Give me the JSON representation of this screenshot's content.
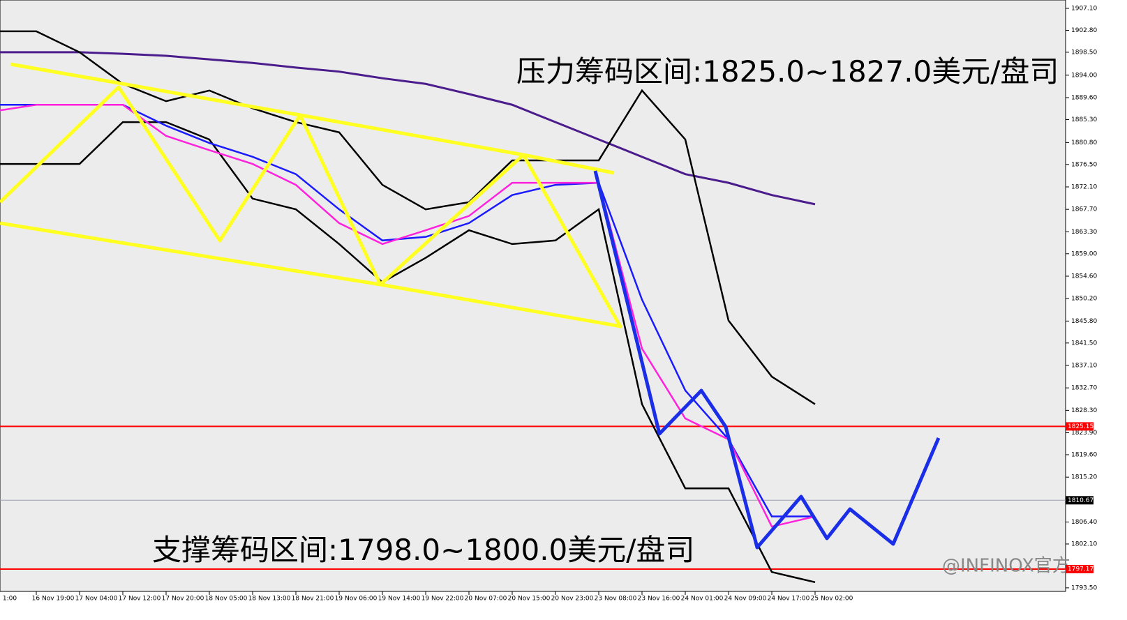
{
  "chart_data": {
    "type": "line",
    "annotations": [
      "压力筹码区间:1825.0~1827.0美元/盘司",
      "支撑筹码区间:1798.0~1800.0美元/盘司"
    ],
    "watermark": "@INFINOX官方",
    "categories": [
      "1:00",
      "16 Nov 19:00",
      "17 Nov 04:00",
      "17 Nov 12:00",
      "17 Nov 20:00",
      "18 Nov 05:00",
      "18 Nov 13:00",
      "18 Nov 21:00",
      "19 Nov 06:00",
      "19 Nov 14:00",
      "19 Nov 22:00",
      "20 Nov 07:00",
      "20 Nov 15:00",
      "20 Nov 23:00",
      "23 Nov 08:00",
      "23 Nov 16:00",
      "24 Nov 01:00",
      "24 Nov 09:00",
      "24 Nov 17:00",
      "25 Nov 02:00"
    ],
    "series": [
      {
        "color": "#4b1c8c",
        "values": [
          1898.5,
          1898.5,
          1898.5,
          1898.2,
          1897.8,
          1897.1,
          1896.4,
          1895.5,
          1894.7,
          1893.4,
          1892.3,
          1890.3,
          1888.2,
          1884.8,
          1881.4,
          1878.0,
          1874.6,
          1872.9,
          1870.5,
          1868.7
        ]
      },
      {
        "color": "#000000",
        "values": [
          1902.6,
          1902.6,
          1898.5,
          1892.3,
          1888.9,
          1891.0,
          1887.5,
          1884.8,
          1882.8,
          1872.5,
          1867.7,
          1869.1,
          1877.3,
          1877.3,
          1877.3,
          1891.0,
          1881.4,
          1845.9,
          1834.9,
          1829.5
        ]
      },
      {
        "color": "#000000",
        "values": [
          1876.6,
          1876.6,
          1876.6,
          1884.8,
          1884.8,
          1881.4,
          1869.8,
          1867.7,
          1860.9,
          1853.4,
          1858.2,
          1863.6,
          1860.9,
          1861.6,
          1867.7,
          1829.5,
          1813.0,
          1813.0,
          1796.6,
          1794.6
        ]
      },
      {
        "color": "#1a1aff",
        "values": [
          1888.2,
          1888.2,
          1888.2,
          1888.2,
          1884.1,
          1880.7,
          1878.0,
          1874.6,
          1867.7,
          1861.6,
          1862.3,
          1865.0,
          1870.5,
          1872.5,
          1872.9,
          1850.0,
          1832.2,
          1822.6,
          1807.5,
          1807.5
        ]
      },
      {
        "color": "#ff22dd",
        "values": [
          1886.9,
          1888.2,
          1888.2,
          1888.2,
          1882.1,
          1879.3,
          1876.6,
          1872.5,
          1865.0,
          1860.9,
          1863.6,
          1866.4,
          1872.9,
          1872.9,
          1872.9,
          1840.4,
          1826.7,
          1822.6,
          1805.5,
          1807.5
        ]
      }
    ],
    "hlines": [
      {
        "value": 1825.15,
        "color": "#ff0000"
      },
      {
        "value": 1810.67,
        "color": "#9aa0b0"
      },
      {
        "value": 1797.17,
        "color": "#ff0000"
      }
    ],
    "ylim": [
      1792.8,
      1908.74
    ],
    "yticks": [
      {
        "value": 1907.1,
        "label": "1907.10"
      },
      {
        "value": 1902.8,
        "label": "1902.80"
      },
      {
        "value": 1898.5,
        "label": "1898.50"
      },
      {
        "value": 1894.0,
        "label": "1894.00"
      },
      {
        "value": 1889.6,
        "label": "1889.60"
      },
      {
        "value": 1885.3,
        "label": "1885.30"
      },
      {
        "value": 1880.8,
        "label": "1880.80"
      },
      {
        "value": 1876.5,
        "label": "1876.50"
      },
      {
        "value": 1872.1,
        "label": "1872.10"
      },
      {
        "value": 1867.7,
        "label": "1867.70"
      },
      {
        "value": 1863.3,
        "label": "1863.30"
      },
      {
        "value": 1859.0,
        "label": "1859.00"
      },
      {
        "value": 1854.6,
        "label": "1854.60"
      },
      {
        "value": 1850.2,
        "label": "1850.20"
      },
      {
        "value": 1845.8,
        "label": "1845.80"
      },
      {
        "value": 1841.5,
        "label": "1841.50"
      },
      {
        "value": 1837.1,
        "label": "1837.10"
      },
      {
        "value": 1832.7,
        "label": "1832.70"
      },
      {
        "value": 1828.3,
        "label": "1828.30"
      },
      {
        "value": 1823.9,
        "label": "1823.90"
      },
      {
        "value": 1819.6,
        "label": "1819.60"
      },
      {
        "value": 1815.2,
        "label": "1815.20"
      },
      {
        "value": 1806.4,
        "label": "1806.40"
      },
      {
        "value": 1802.1,
        "label": "1802.10"
      },
      {
        "value": 1793.5,
        "label": "1793.50"
      }
    ]
  }
}
